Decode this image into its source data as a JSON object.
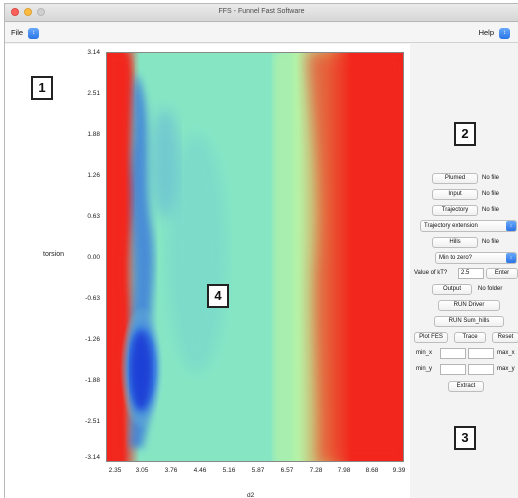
{
  "window": {
    "title": "FFS - Funnel Fast Software"
  },
  "menubar": {
    "file_label": "File",
    "help_label": "Help"
  },
  "plot": {
    "y_ticks": [
      "3.14",
      "2.51",
      "1.88",
      "1.26",
      "0.63",
      "0.00",
      "-0.63",
      "-1.26",
      "-1.88",
      "-2.51",
      "-3.14"
    ],
    "x_ticks": [
      "2.35",
      "3.05",
      "3.76",
      "4.46",
      "5.16",
      "5.87",
      "6.57",
      "7.28",
      "7.98",
      "8.68",
      "9.39"
    ],
    "ylabel": "torsion",
    "xlabel": "d2",
    "colors": {
      "low": "#1f3fd6",
      "mid": "#86e6c4",
      "ridge": "#b6f2a6",
      "high": "#f2261d"
    }
  },
  "callouts": [
    "1",
    "2",
    "3",
    "4"
  ],
  "panel": {
    "plumed_button": "Plumed",
    "plumed_status": "No file",
    "input_button": "Input",
    "input_status": "No file",
    "trajectory_button": "Trajectory",
    "trajectory_status": "No file",
    "trajectory_extension_select": "Trajectory extension",
    "hills_button": "Hills",
    "hills_status": "No file",
    "min_to_zero_select": "Min to zero?",
    "kt_label": "Value of kT?",
    "kt_value": "2.5",
    "enter_button": "Enter",
    "output_button": "Output",
    "output_status": "No folder",
    "run_driver_button": "RUN Driver",
    "run_sum_hills_button": "RUN Sum_hills",
    "plot_fes_button": "Plot FES",
    "trace_button": "Trace",
    "reset_button": "Reset",
    "min_x_label": "min_x",
    "max_x_label": "max_x",
    "min_y_label": "min_y",
    "max_y_label": "max_y",
    "extract_button": "Extract"
  }
}
